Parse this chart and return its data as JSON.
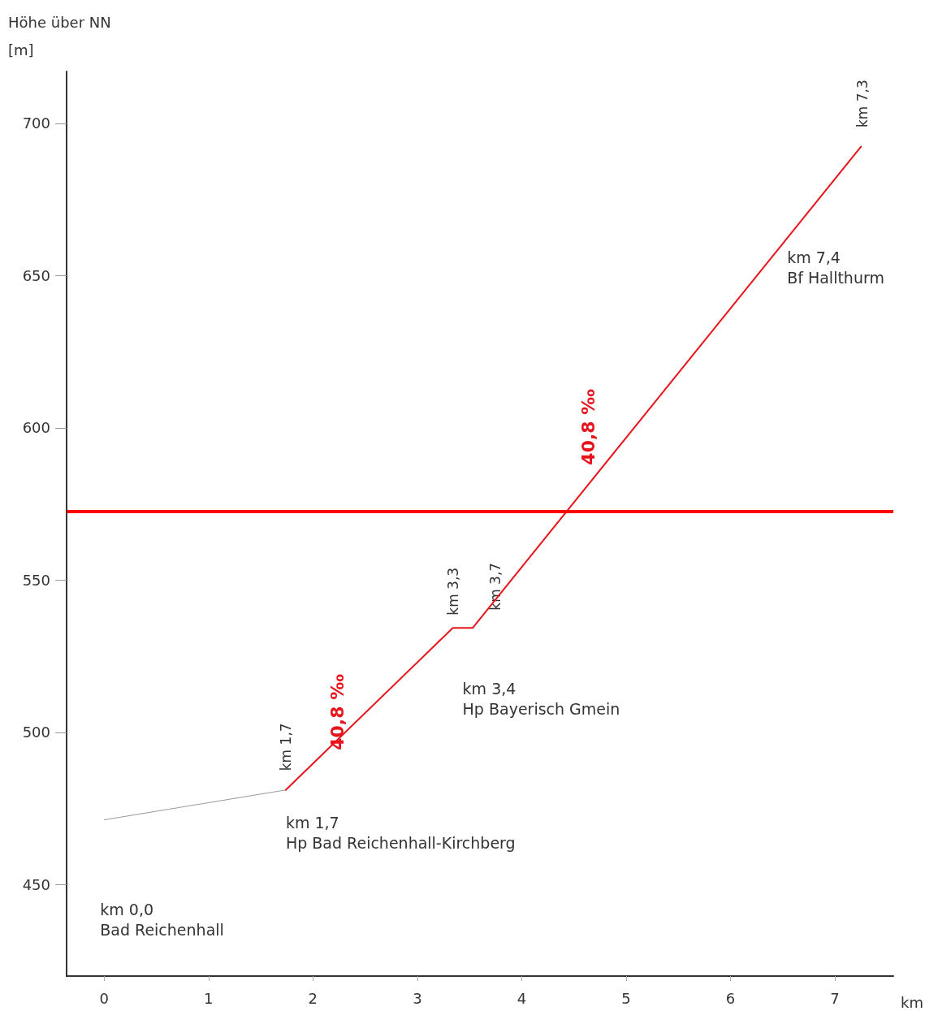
{
  "chart_data": {
    "type": "line",
    "ylabel": "Höhe über NN\n[m]",
    "xlabel": "km",
    "series": [
      {
        "color": "#999999",
        "x": [
          0,
          1.74
        ],
        "values": [
          471.3,
          481.1
        ]
      },
      {
        "color": "#e8141c",
        "x": [
          1.74,
          3.34,
          3.53,
          7.25
        ],
        "values": [
          481.1,
          534.3,
          534.3,
          692.3
        ]
      }
    ],
    "xlim": [
      -0.36,
      7.56
    ],
    "xticks": [
      0,
      1,
      2,
      3,
      4,
      5,
      6,
      7
    ],
    "ylim": [
      420,
      717
    ],
    "yticks": [
      450,
      500,
      550,
      600,
      650,
      700
    ],
    "grid": false,
    "marker": "none",
    "line_style": "solid",
    "ref_lines": [
      {
        "axis": "y",
        "value": 572.6,
        "color": "#ff0000"
      }
    ],
    "annotations": [
      "km 0,0\nBad Reichenhall",
      "km 1,7\nHp Bad Reichenhall-Kirchberg",
      "km 3,4\nHp Bayerisch Gmein",
      "km 7,4\nBf Hallthurm",
      {
        "text": "km 1,7",
        "x": 1.74,
        "y": 481.1
      },
      {
        "text": "km 3,3",
        "x": 3.34,
        "y": 534.3
      },
      {
        "text": "km 3,7",
        "x": 3.53,
        "y": 534.3
      },
      {
        "text": "km 7,3",
        "x": 7.25,
        "y": 692.3
      },
      "40,8 ‰",
      "40,8 ‰"
    ]
  }
}
